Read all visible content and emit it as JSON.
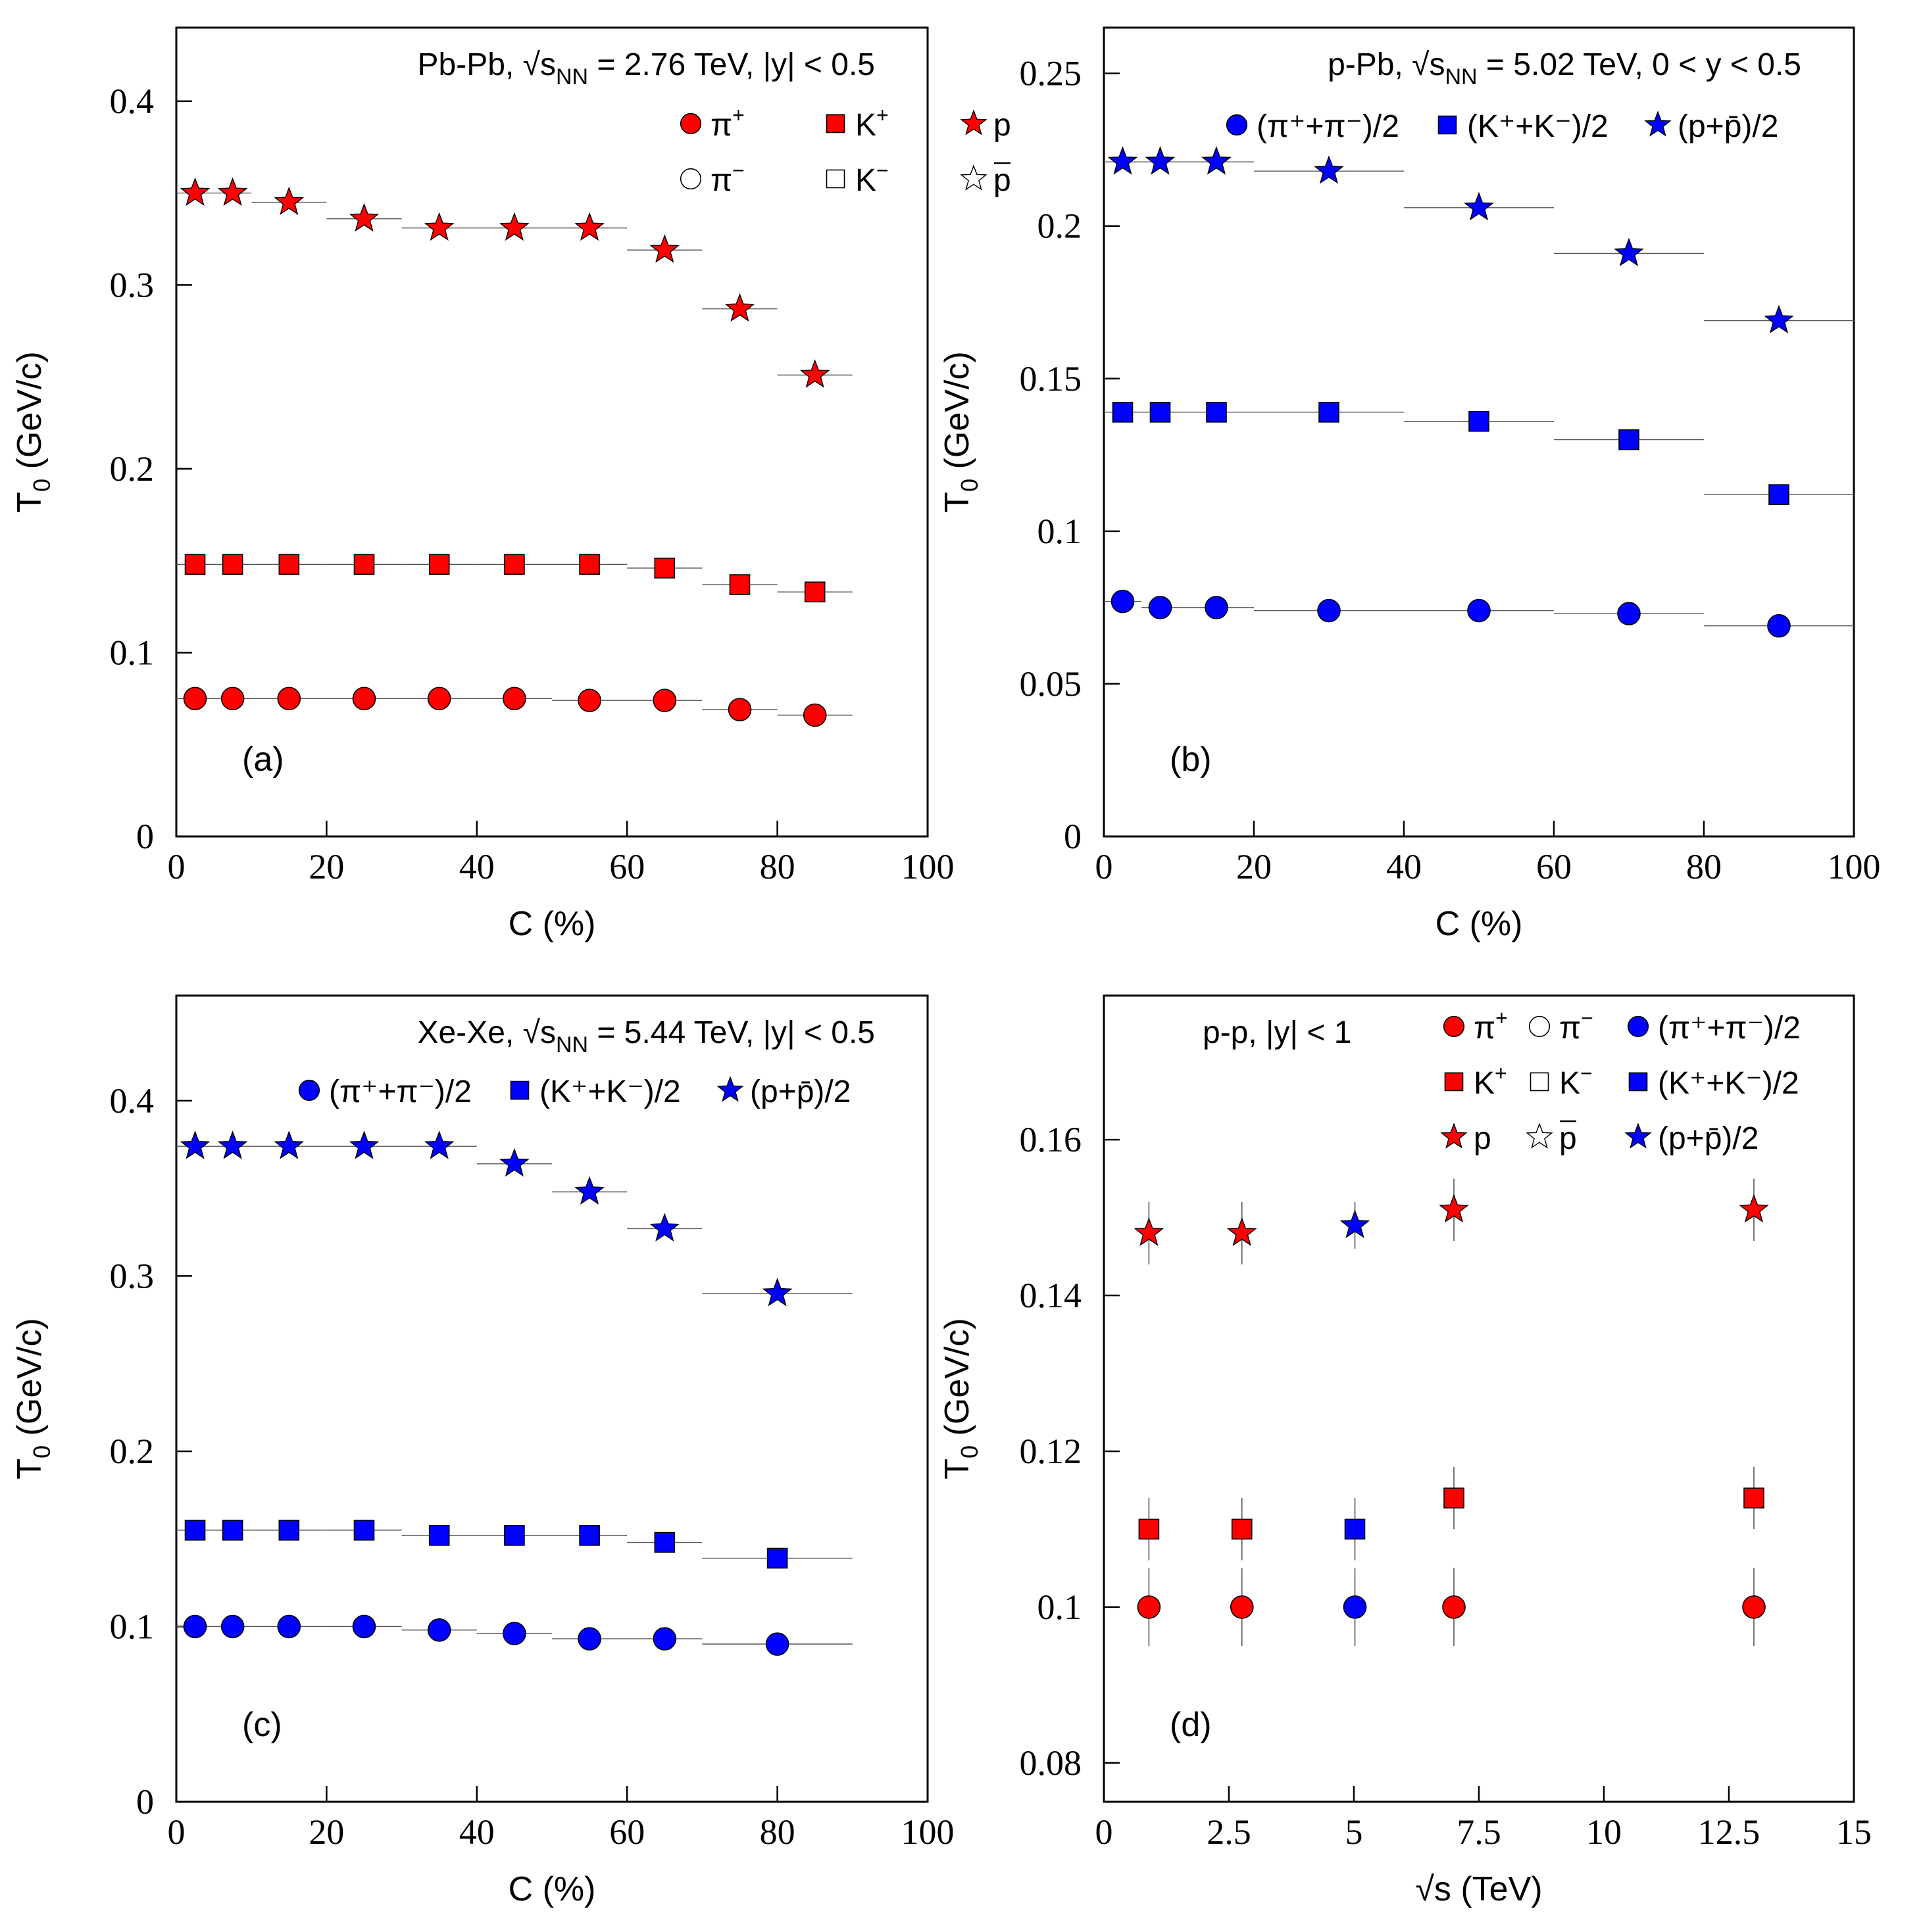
{
  "chart_data": [
    {
      "type": "scatter",
      "panel_label": "(a)",
      "annotation": {
        "system": "Pb-Pb, ",
        "sqrt": "s",
        "sub": "NN",
        "rest": " = 2.76 TeV, |y| < 0.5"
      },
      "xlabel": "C (%)",
      "ylabel": {
        "main": "T",
        "sub": "0",
        "rest": " (GeV/c)"
      },
      "xlim": [
        0,
        100
      ],
      "ylim": [
        0,
        0.44
      ],
      "xticks": [
        0,
        20,
        40,
        60,
        80,
        100
      ],
      "yticks": [
        0,
        0.1,
        0.2,
        0.3,
        0.4
      ],
      "xtick_labels": [
        "0",
        "20",
        "40",
        "60",
        "80",
        "100"
      ],
      "ytick_labels": [
        "0",
        "0.1",
        "0.2",
        "0.3",
        "0.4"
      ],
      "legend": [
        {
          "marker": "circle",
          "fill": "#ff0000",
          "text": "π",
          "sup": "+"
        },
        {
          "marker": "square",
          "fill": "#ff0000",
          "text": "K",
          "sup": "+"
        },
        {
          "marker": "star",
          "fill": "#ff0000",
          "text": "p",
          "sup": ""
        },
        {
          "marker": "circle",
          "fill": "#ffffff",
          "text": "π",
          "sup": "−"
        },
        {
          "marker": "square",
          "fill": "#ffffff",
          "text": "K",
          "sup": "−"
        },
        {
          "marker": "star",
          "fill": "#ffffff",
          "text": "p",
          "sup": "",
          "bar": true
        }
      ],
      "series": [
        {
          "marker": "circle",
          "color": "#ff0000",
          "x": [
            2.5,
            7.5,
            15,
            25,
            35,
            45,
            55,
            65,
            75,
            85
          ],
          "xerr": [
            2.5,
            2.5,
            5,
            5,
            5,
            5,
            5,
            5,
            5,
            5
          ],
          "y": [
            0.075,
            0.075,
            0.075,
            0.075,
            0.075,
            0.075,
            0.074,
            0.074,
            0.069,
            0.066
          ]
        },
        {
          "marker": "square",
          "color": "#ff0000",
          "x": [
            2.5,
            7.5,
            15,
            25,
            35,
            45,
            55,
            65,
            75,
            85
          ],
          "xerr": [
            2.5,
            2.5,
            5,
            5,
            5,
            5,
            5,
            5,
            5,
            5
          ],
          "y": [
            0.148,
            0.148,
            0.148,
            0.148,
            0.148,
            0.148,
            0.148,
            0.146,
            0.137,
            0.133
          ]
        },
        {
          "marker": "star",
          "color": "#ff0000",
          "x": [
            2.5,
            7.5,
            15,
            25,
            35,
            45,
            55,
            65,
            75,
            85
          ],
          "xerr": [
            2.5,
            2.5,
            5,
            5,
            5,
            5,
            5,
            5,
            5,
            5
          ],
          "y": [
            0.35,
            0.35,
            0.345,
            0.336,
            0.331,
            0.331,
            0.331,
            0.319,
            0.287,
            0.251
          ]
        }
      ]
    },
    {
      "type": "scatter",
      "panel_label": "(b)",
      "annotation": {
        "system": "p-Pb, ",
        "sqrt": "s",
        "sub": "NN",
        "rest": " = 5.02 TeV, 0 < y < 0.5"
      },
      "xlabel": "C (%)",
      "ylabel": {
        "main": "T",
        "sub": "0",
        "rest": " (GeV/c)"
      },
      "xlim": [
        0,
        100
      ],
      "ylim": [
        0,
        0.265
      ],
      "xticks": [
        0,
        20,
        40,
        60,
        80,
        100
      ],
      "yticks": [
        0,
        0.05,
        0.1,
        0.15,
        0.2,
        0.25
      ],
      "xtick_labels": [
        "0",
        "20",
        "40",
        "60",
        "80",
        "100"
      ],
      "ytick_labels": [
        "0",
        "0.05",
        "0.1",
        "0.15",
        "0.2",
        "0.25"
      ],
      "legend": [
        {
          "marker": "circle",
          "fill": "#0000ff",
          "text": "(π⁺+π⁻)/2",
          "sup": ""
        },
        {
          "marker": "square",
          "fill": "#0000ff",
          "text": "(K⁺+K⁻)/2",
          "sup": ""
        },
        {
          "marker": "star",
          "fill": "#0000ff",
          "text": "(p+p̄)/2",
          "sup": ""
        }
      ],
      "series": [
        {
          "marker": "circle",
          "color": "#0000ff",
          "x": [
            2.5,
            7.5,
            15,
            30,
            50,
            70,
            90
          ],
          "xerr": [
            2.5,
            2.5,
            5,
            10,
            10,
            10,
            10
          ],
          "y": [
            0.077,
            0.075,
            0.075,
            0.074,
            0.074,
            0.073,
            0.069
          ]
        },
        {
          "marker": "square",
          "color": "#0000ff",
          "x": [
            2.5,
            7.5,
            15,
            30,
            50,
            70,
            90
          ],
          "xerr": [
            2.5,
            2.5,
            5,
            10,
            10,
            10,
            10
          ],
          "y": [
            0.139,
            0.139,
            0.139,
            0.139,
            0.136,
            0.13,
            0.112
          ]
        },
        {
          "marker": "star",
          "color": "#0000ff",
          "x": [
            2.5,
            7.5,
            15,
            30,
            50,
            70,
            90
          ],
          "xerr": [
            2.5,
            2.5,
            5,
            10,
            10,
            10,
            10
          ],
          "y": [
            0.221,
            0.221,
            0.221,
            0.218,
            0.206,
            0.191,
            0.169
          ]
        }
      ]
    },
    {
      "type": "scatter",
      "panel_label": "(c)",
      "annotation": {
        "system": "Xe-Xe, ",
        "sqrt": "s",
        "sub": "NN",
        "rest": " = 5.44 TeV, |y| < 0.5"
      },
      "xlabel": "C (%)",
      "ylabel": {
        "main": "T",
        "sub": "0",
        "rest": " (GeV/c)"
      },
      "xlim": [
        0,
        100
      ],
      "ylim": [
        0,
        0.46
      ],
      "xticks": [
        0,
        20,
        40,
        60,
        80,
        100
      ],
      "yticks": [
        0,
        0.1,
        0.2,
        0.3,
        0.4
      ],
      "xtick_labels": [
        "0",
        "20",
        "40",
        "60",
        "80",
        "100"
      ],
      "ytick_labels": [
        "0",
        "0.1",
        "0.2",
        "0.3",
        "0.4"
      ],
      "legend": [
        {
          "marker": "circle",
          "fill": "#0000ff",
          "text": "(π⁺+π⁻)/2",
          "sup": ""
        },
        {
          "marker": "square",
          "fill": "#0000ff",
          "text": "(K⁺+K⁻)/2",
          "sup": ""
        },
        {
          "marker": "star",
          "fill": "#0000ff",
          "text": "(p+p̄)/2",
          "sup": ""
        }
      ],
      "series": [
        {
          "marker": "circle",
          "color": "#0000ff",
          "x": [
            2.5,
            7.5,
            15,
            25,
            35,
            45,
            55,
            65,
            80
          ],
          "xerr": [
            2.5,
            2.5,
            5,
            5,
            5,
            5,
            5,
            5,
            10
          ],
          "y": [
            0.1,
            0.1,
            0.1,
            0.1,
            0.098,
            0.096,
            0.093,
            0.093,
            0.09
          ]
        },
        {
          "marker": "square",
          "color": "#0000ff",
          "x": [
            2.5,
            7.5,
            15,
            25,
            35,
            45,
            55,
            65,
            80
          ],
          "xerr": [
            2.5,
            2.5,
            5,
            5,
            5,
            5,
            5,
            5,
            10
          ],
          "y": [
            0.155,
            0.155,
            0.155,
            0.155,
            0.152,
            0.152,
            0.152,
            0.148,
            0.139
          ]
        },
        {
          "marker": "star",
          "color": "#0000ff",
          "x": [
            2.5,
            7.5,
            15,
            25,
            35,
            45,
            55,
            65,
            80
          ],
          "xerr": [
            2.5,
            2.5,
            5,
            5,
            5,
            5,
            5,
            5,
            10
          ],
          "y": [
            0.374,
            0.374,
            0.374,
            0.374,
            0.374,
            0.364,
            0.348,
            0.327,
            0.29
          ]
        }
      ]
    },
    {
      "type": "scatter",
      "panel_label": "(d)",
      "annotation": {
        "system": "p-p, |y| < 1",
        "sqrt": "",
        "sub": "",
        "rest": ""
      },
      "xlabel": "√s (TeV)",
      "ylabel": {
        "main": "T",
        "sub": "0",
        "rest": " (GeV/c)"
      },
      "xlim": [
        0,
        15
      ],
      "ylim": [
        0.075,
        0.1785
      ],
      "xticks": [
        0,
        2.5,
        5,
        7.5,
        10,
        12.5,
        15
      ],
      "yticks": [
        0.08,
        0.1,
        0.12,
        0.14,
        0.16
      ],
      "xtick_labels": [
        "0",
        "2.5",
        "5",
        "7.5",
        "10",
        "12.5",
        "15"
      ],
      "ytick_labels": [
        "0.08",
        "0.1",
        "0.12",
        "0.14",
        "0.16"
      ],
      "legend": [
        {
          "marker": "circle",
          "fill": "#ff0000",
          "text": "π",
          "sup": "+"
        },
        {
          "marker": "circle",
          "fill": "#ffffff",
          "text": "π",
          "sup": "−"
        },
        {
          "marker": "circle",
          "fill": "#0000ff",
          "text": "(π⁺+π⁻)/2",
          "sup": ""
        },
        {
          "marker": "square",
          "fill": "#ff0000",
          "text": "K",
          "sup": "+"
        },
        {
          "marker": "square",
          "fill": "#ffffff",
          "text": "K",
          "sup": "−"
        },
        {
          "marker": "square",
          "fill": "#0000ff",
          "text": "(K⁺+K⁻)/2",
          "sup": ""
        },
        {
          "marker": "star",
          "fill": "#ff0000",
          "text": "p",
          "sup": ""
        },
        {
          "marker": "star",
          "fill": "#ffffff",
          "text": "p",
          "sup": "",
          "bar": true
        },
        {
          "marker": "star",
          "fill": "#0000ff",
          "text": "(p+p̄)/2",
          "sup": ""
        }
      ],
      "series": [
        {
          "marker": "circle",
          "color": "#ff0000",
          "x": [
            0.9,
            2.76,
            7,
            13
          ],
          "yerr": 0.005,
          "y": [
            0.1,
            0.1,
            0.1,
            0.1
          ]
        },
        {
          "marker": "square",
          "color": "#ff0000",
          "x": [
            0.9,
            2.76,
            7,
            13
          ],
          "yerr": 0.004,
          "y": [
            0.11,
            0.11,
            0.114,
            0.114
          ]
        },
        {
          "marker": "star",
          "color": "#ff0000",
          "x": [
            0.9,
            2.76,
            7,
            13
          ],
          "yerr": 0.004,
          "y": [
            0.148,
            0.148,
            0.151,
            0.151
          ]
        },
        {
          "marker": "circle",
          "color": "#0000ff",
          "x": [
            5.02
          ],
          "yerr": 0.005,
          "y": [
            0.1
          ]
        },
        {
          "marker": "square",
          "color": "#0000ff",
          "x": [
            5.02
          ],
          "yerr": 0.004,
          "y": [
            0.11
          ]
        },
        {
          "marker": "star",
          "color": "#0000ff",
          "x": [
            5.02
          ],
          "yerr": 0.003,
          "y": [
            0.149
          ]
        }
      ]
    }
  ]
}
